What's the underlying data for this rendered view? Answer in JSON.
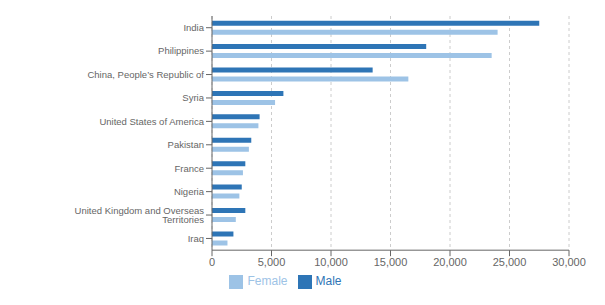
{
  "chart_data": {
    "type": "bar",
    "orientation": "horizontal",
    "categories": [
      "Iraq",
      "United Kingdom and Overseas Territories",
      "Nigeria",
      "France",
      "Pakistan",
      "United States of America",
      "Syria",
      "China, People’s Republic of",
      "Philippines",
      "India"
    ],
    "series": [
      {
        "name": "Male",
        "color": "#2e75b6",
        "values": [
          1800,
          2800,
          2500,
          2800,
          3300,
          4000,
          6000,
          13500,
          18000,
          27500
        ]
      },
      {
        "name": "Female",
        "color": "#9dc3e6",
        "values": [
          1300,
          2000,
          2300,
          2600,
          3100,
          3900,
          5300,
          16500,
          23500,
          24000
        ]
      }
    ],
    "xlim": [
      0,
      30000
    ],
    "xticks": [
      0,
      {
        "value": 5000,
        "label": "5,000"
      },
      {
        "value": 10000,
        "label": "10,000"
      },
      {
        "value": 15000,
        "label": "15,000"
      },
      {
        "value": 20000,
        "label": "20,000"
      },
      {
        "value": 25000,
        "label": "25,000"
      },
      {
        "value": 30000,
        "label": "30,000"
      }
    ],
    "grid": true,
    "legend": "bottom"
  }
}
